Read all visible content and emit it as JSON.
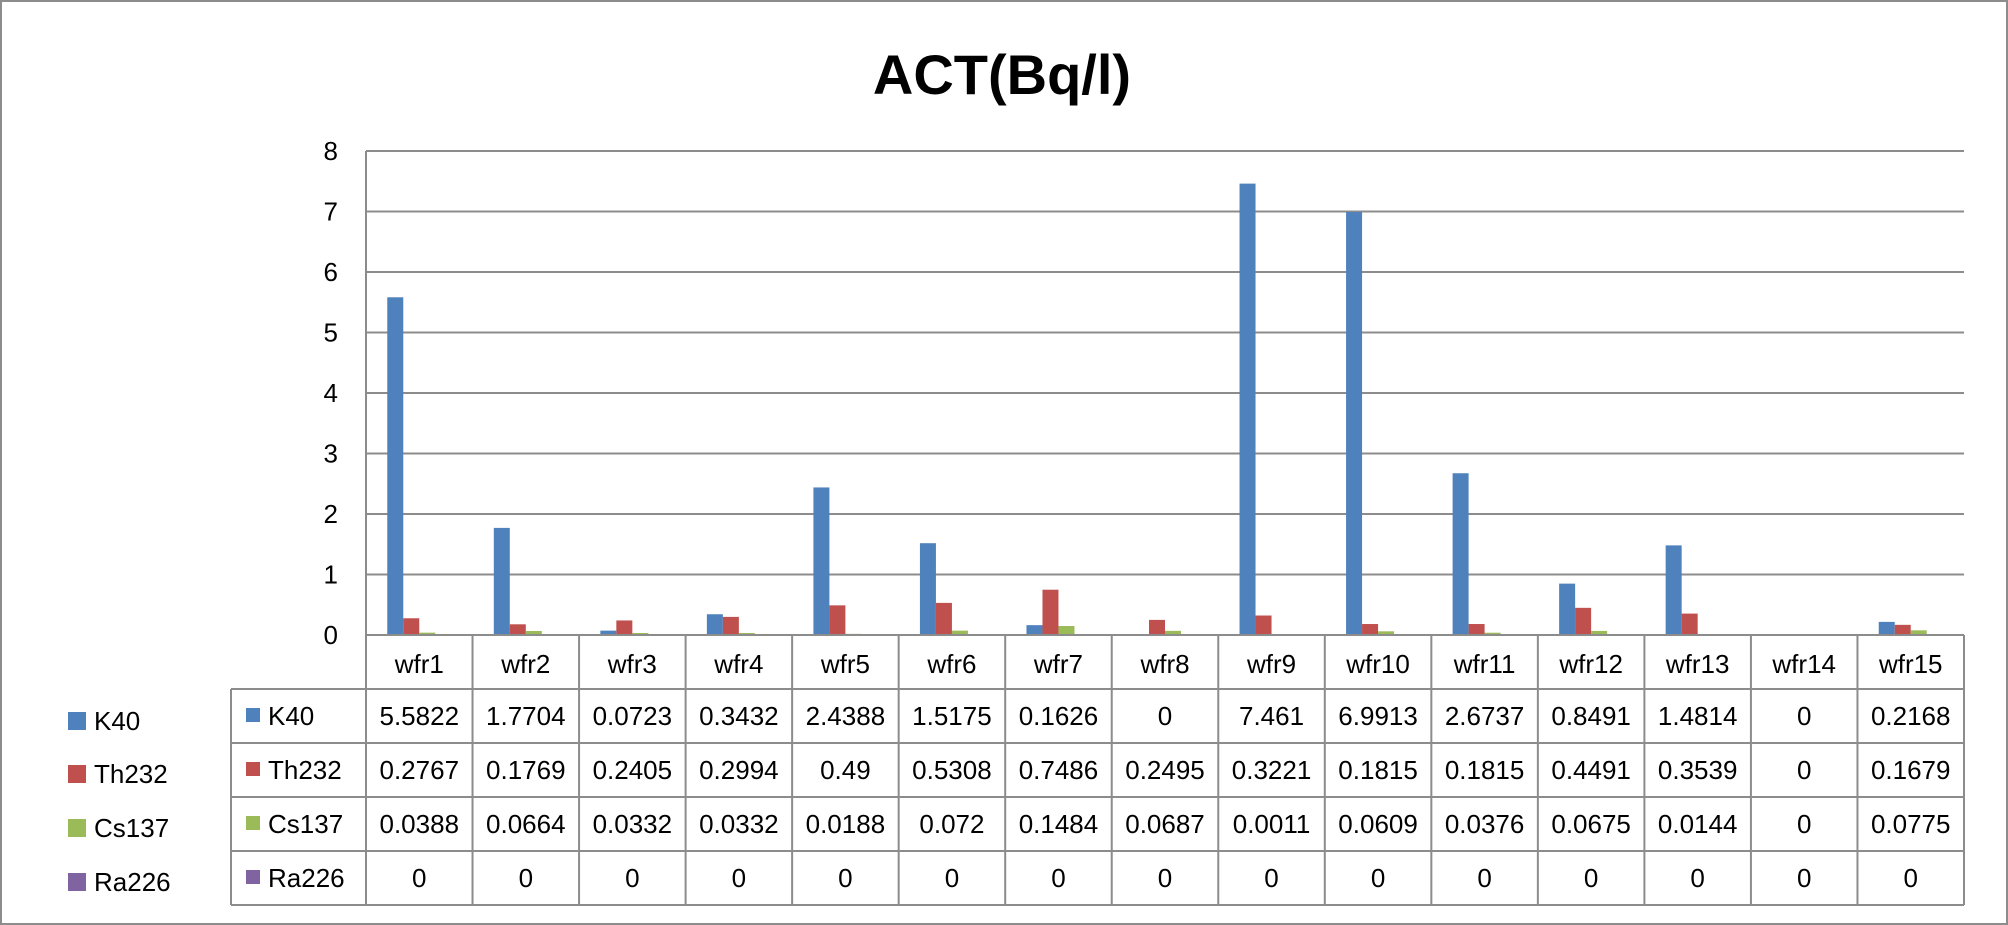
{
  "chart_data": {
    "type": "bar",
    "title": "ACT(Bq/l)",
    "xlabel": "",
    "ylabel": "",
    "ylim": [
      0,
      8
    ],
    "yticks": [
      "0",
      "1",
      "2",
      "3",
      "4",
      "5",
      "6",
      "7",
      "8"
    ],
    "grid": true,
    "legend_position": "left",
    "categories": [
      "wfr1",
      "wfr2",
      "wfr3",
      "wfr4",
      "wfr5",
      "wfr6",
      "wfr7",
      "wfr8",
      "wfr9",
      "wfr10",
      "wfr11",
      "wfr12",
      "wfr13",
      "wfr14",
      "wfr15"
    ],
    "series": [
      {
        "name": "K40",
        "color": "#4f81bd",
        "values": [
          5.5822,
          1.7704,
          0.0723,
          0.3432,
          2.4388,
          1.5175,
          0.1626,
          0,
          7.461,
          6.9913,
          2.6737,
          0.8491,
          1.4814,
          0,
          0.2168
        ],
        "labels": [
          "5.5822",
          "1.7704",
          "0.0723",
          "0.3432",
          "2.4388",
          "1.5175",
          "0.1626",
          "0",
          "7.461",
          "6.9913",
          "2.6737",
          "0.8491",
          "1.4814",
          "0",
          "0.2168"
        ]
      },
      {
        "name": "Th232",
        "color": "#c0504d",
        "values": [
          0.2767,
          0.1769,
          0.2405,
          0.2994,
          0.49,
          0.5308,
          0.7486,
          0.2495,
          0.3221,
          0.1815,
          0.1815,
          0.4491,
          0.3539,
          0,
          0.1679
        ],
        "labels": [
          "0.2767",
          "0.1769",
          "0.2405",
          "0.2994",
          "0.49",
          "0.5308",
          "0.7486",
          "0.2495",
          "0.3221",
          "0.1815",
          "0.1815",
          "0.4491",
          "0.3539",
          "0",
          "0.1679"
        ]
      },
      {
        "name": "Cs137",
        "color": "#9bbb59",
        "values": [
          0.0388,
          0.0664,
          0.0332,
          0.0332,
          0.0188,
          0.072,
          0.1484,
          0.0687,
          0.0011,
          0.0609,
          0.0376,
          0.0675,
          0.0144,
          0,
          0.0775
        ],
        "labels": [
          "0.0388",
          "0.0664",
          "0.0332",
          "0.0332",
          "0.0188",
          "0.072",
          "0.1484",
          "0.0687",
          "0.0011",
          "0.0609",
          "0.0376",
          "0.0675",
          "0.0144",
          "0",
          "0.0775"
        ]
      },
      {
        "name": "Ra226",
        "color": "#8064a2",
        "values": [
          0,
          0,
          0,
          0,
          0,
          0,
          0,
          0,
          0,
          0,
          0,
          0,
          0,
          0,
          0
        ],
        "labels": [
          "0",
          "0",
          "0",
          "0",
          "0",
          "0",
          "0",
          "0",
          "0",
          "0",
          "0",
          "0",
          "0",
          "0",
          "0"
        ]
      }
    ]
  }
}
